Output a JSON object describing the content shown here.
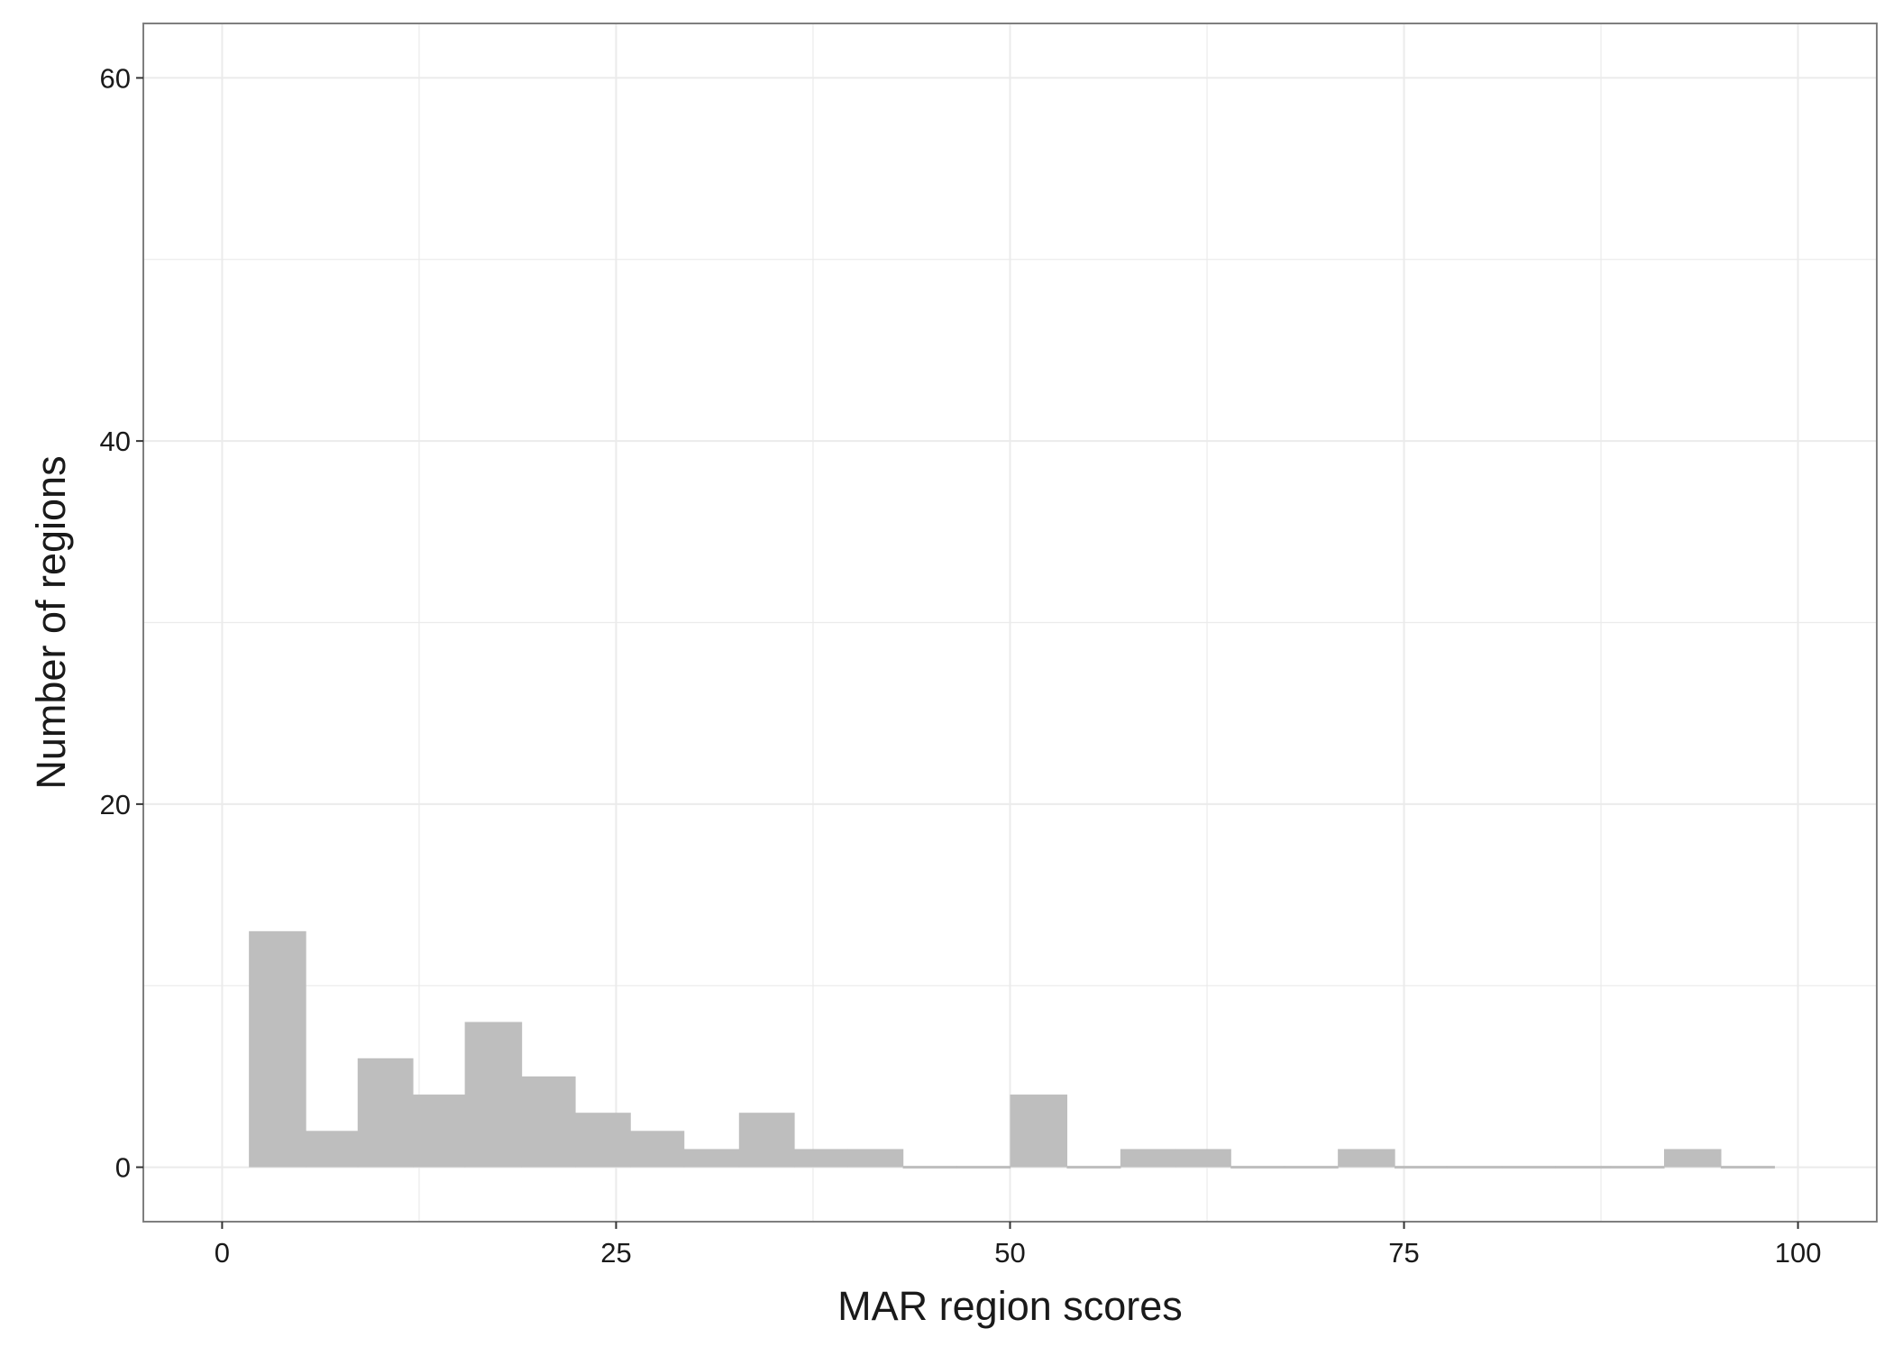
{
  "chart_data": {
    "type": "bar",
    "subtype": "histogram",
    "title": "",
    "xlabel": "MAR region scores",
    "ylabel": "Number of regions",
    "xlim": [
      -5,
      105
    ],
    "ylim": [
      -3,
      63
    ],
    "x_ticks": [
      0,
      25,
      50,
      75,
      100
    ],
    "y_ticks": [
      0,
      20,
      40,
      60
    ],
    "grid": true,
    "bins": [
      {
        "x0": 1.7,
        "x1": 5.3,
        "count": 13
      },
      {
        "x0": 5.3,
        "x1": 8.6,
        "count": 2
      },
      {
        "x0": 8.6,
        "x1": 12.1,
        "count": 6
      },
      {
        "x0": 12.1,
        "x1": 15.4,
        "count": 4
      },
      {
        "x0": 15.4,
        "x1": 19.0,
        "count": 8
      },
      {
        "x0": 19.0,
        "x1": 22.4,
        "count": 5
      },
      {
        "x0": 22.4,
        "x1": 25.9,
        "count": 3
      },
      {
        "x0": 25.9,
        "x1": 29.3,
        "count": 2
      },
      {
        "x0": 29.3,
        "x1": 32.8,
        "count": 1
      },
      {
        "x0": 32.8,
        "x1": 36.3,
        "count": 3
      },
      {
        "x0": 36.3,
        "x1": 39.7,
        "count": 1
      },
      {
        "x0": 39.7,
        "x1": 43.2,
        "count": 1
      },
      {
        "x0": 43.2,
        "x1": 46.6,
        "count": 0
      },
      {
        "x0": 46.6,
        "x1": 50.0,
        "count": 0
      },
      {
        "x0": 50.0,
        "x1": 53.6,
        "count": 4
      },
      {
        "x0": 53.6,
        "x1": 57.0,
        "count": 0
      },
      {
        "x0": 57.0,
        "x1": 60.5,
        "count": 1
      },
      {
        "x0": 60.5,
        "x1": 64.0,
        "count": 1
      },
      {
        "x0": 64.0,
        "x1": 67.4,
        "count": 0
      },
      {
        "x0": 67.4,
        "x1": 70.8,
        "count": 0
      },
      {
        "x0": 70.8,
        "x1": 74.4,
        "count": 1
      },
      {
        "x0": 74.4,
        "x1": 77.7,
        "count": 0
      },
      {
        "x0": 77.7,
        "x1": 81.2,
        "count": 0
      },
      {
        "x0": 81.2,
        "x1": 84.6,
        "count": 0
      },
      {
        "x0": 84.6,
        "x1": 88.1,
        "count": 0
      },
      {
        "x0": 88.1,
        "x1": 91.5,
        "count": 0
      },
      {
        "x0": 91.5,
        "x1": 95.1,
        "count": 1
      },
      {
        "x0": 95.1,
        "x1": 98.5,
        "count": 0
      }
    ],
    "bar_color": "#bebebe",
    "grid_color": "#ebebeb",
    "panel_border_color": "#7f7f7f",
    "background": "#ffffff"
  }
}
